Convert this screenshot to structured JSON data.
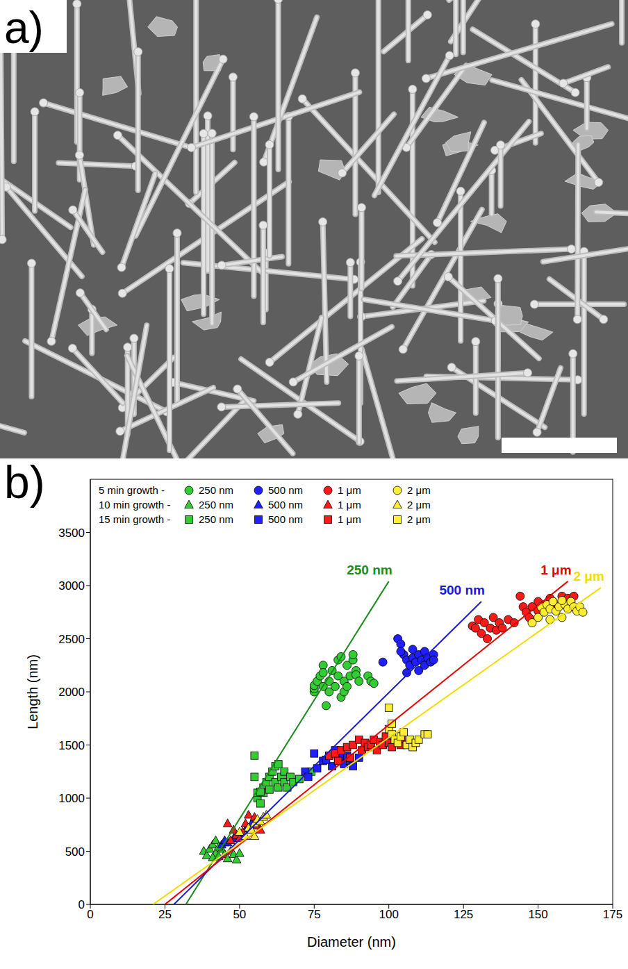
{
  "image_panel": {
    "label": "a)"
  },
  "chart_data": {
    "type": "scatter",
    "panel_label": "b)",
    "x_label": "Diameter (nm)",
    "y_label": "Length (nm)",
    "xlim": [
      0,
      175
    ],
    "xticks": [
      0,
      25,
      50,
      75,
      100,
      125,
      150,
      175
    ],
    "ylim": [
      0,
      4000
    ],
    "yticks": [
      0,
      500,
      1000,
      1500,
      2000,
      2500,
      3000,
      3500
    ],
    "legend": "top-left",
    "series": [
      {
        "name": "250 nm",
        "group": "5 min growth -",
        "color": "#33cc33",
        "marker": "circle",
        "x": [
          75,
          75,
          75,
          76,
          77,
          78,
          78,
          79,
          80,
          80,
          81,
          82,
          83,
          83,
          84,
          84,
          85,
          85,
          86,
          86,
          87,
          88,
          88,
          89,
          89,
          90,
          93,
          94,
          95,
          78
        ],
        "y": [
          2000,
          2030,
          2060,
          2100,
          2150,
          2050,
          2250,
          1870,
          2000,
          2100,
          2200,
          2050,
          2150,
          2300,
          1950,
          2330,
          2000,
          2100,
          2050,
          2250,
          2150,
          2300,
          2350,
          2200,
          2160,
          2100,
          2150,
          2100,
          2080,
          2180
        ]
      },
      {
        "name": "500 nm",
        "group": "5 min growth -",
        "color": "#1f1fff",
        "marker": "circle",
        "x": [
          98,
          103,
          104,
          105,
          106,
          106,
          107,
          108,
          108,
          109,
          110,
          110,
          111,
          112,
          112,
          113,
          114,
          115,
          115,
          104
        ],
        "y": [
          2280,
          2500,
          2450,
          2350,
          2300,
          2180,
          2250,
          2400,
          2320,
          2280,
          2350,
          2200,
          2300,
          2250,
          2380,
          2320,
          2280,
          2350,
          2300,
          2380
        ]
      },
      {
        "name": "1 μm",
        "group": "5 min growth -",
        "color": "#ff1a1a",
        "marker": "circle",
        "x": [
          128,
          129,
          130,
          131,
          132,
          133,
          134,
          135,
          136,
          137,
          138,
          140,
          142,
          144,
          145,
          146,
          148,
          150,
          152,
          154,
          155,
          156,
          158,
          160,
          161,
          162,
          147,
          150
        ],
        "y": [
          2620,
          2600,
          2680,
          2550,
          2650,
          2500,
          2600,
          2700,
          2580,
          2650,
          2600,
          2680,
          2650,
          2900,
          2800,
          2750,
          2800,
          2850,
          2820,
          2880,
          2850,
          2800,
          2900,
          2880,
          2850,
          2900,
          2700,
          2760
        ]
      },
      {
        "name": "2 μm",
        "group": "5 min growth -",
        "color": "#ffee33",
        "marker": "circle",
        "x": [
          148,
          150,
          151,
          152,
          153,
          154,
          155,
          156,
          157,
          158,
          159,
          160,
          161,
          162,
          163,
          164,
          165,
          154,
          158
        ],
        "y": [
          2650,
          2700,
          2800,
          2750,
          2820,
          2780,
          2850,
          2760,
          2800,
          2700,
          2820,
          2780,
          2850,
          2800,
          2760,
          2800,
          2750,
          2680,
          2860
        ]
      },
      {
        "name": "250 nm",
        "group": "10 min growth -",
        "color": "#33cc33",
        "marker": "triangle",
        "x": [
          38,
          39,
          40,
          41,
          42,
          42,
          43,
          44,
          45,
          45,
          46,
          47,
          48,
          49,
          50,
          41,
          43
        ],
        "y": [
          500,
          460,
          520,
          560,
          600,
          480,
          450,
          520,
          580,
          470,
          430,
          500,
          470,
          420,
          480,
          440,
          540
        ]
      },
      {
        "name": "500 nm",
        "group": "10 min growth -",
        "color": "#1f1fff",
        "marker": "triangle",
        "x": [
          44,
          45,
          46,
          48,
          50,
          52,
          54,
          55
        ],
        "y": [
          560,
          600,
          580,
          620,
          650,
          700,
          760,
          740
        ]
      },
      {
        "name": "1 μm",
        "group": "10 min growth -",
        "color": "#ff1a1a",
        "marker": "triangle",
        "x": [
          46,
          48,
          49,
          50,
          51,
          52,
          53,
          55,
          56,
          57,
          47
        ],
        "y": [
          760,
          700,
          650,
          620,
          680,
          760,
          840,
          820,
          740,
          700,
          600
        ]
      },
      {
        "name": "2 μm",
        "group": "10 min growth -",
        "color": "#ffee33",
        "marker": "triangle",
        "x": [
          50,
          52,
          53,
          54,
          55,
          56,
          57,
          58,
          59,
          55
        ],
        "y": [
          680,
          640,
          720,
          700,
          760,
          800,
          780,
          820,
          840,
          640
        ]
      },
      {
        "name": "250 nm",
        "group": "15 min growth -",
        "color": "#33cc33",
        "marker": "square",
        "x": [
          55,
          55,
          56,
          56,
          57,
          58,
          58,
          59,
          60,
          60,
          61,
          62,
          62,
          63,
          64,
          65,
          65,
          66,
          67,
          68,
          70,
          57,
          63,
          74
        ],
        "y": [
          1400,
          1200,
          1000,
          1050,
          950,
          1100,
          1050,
          1150,
          1200,
          1080,
          1250,
          1150,
          1300,
          1100,
          1200,
          1250,
          1150,
          1100,
          1200,
          1150,
          1180,
          1060,
          1320,
          1250
        ]
      },
      {
        "name": "500 nm",
        "group": "15 min growth -",
        "color": "#1f1fff",
        "marker": "square",
        "x": [
          72,
          73,
          75,
          76,
          78,
          80,
          81,
          82,
          83,
          84,
          85,
          86,
          87,
          88,
          90,
          79
        ],
        "y": [
          1250,
          1200,
          1420,
          1280,
          1350,
          1400,
          1300,
          1450,
          1350,
          1380,
          1320,
          1400,
          1350,
          1300,
          1380,
          1360
        ]
      },
      {
        "name": "1 μm",
        "group": "15 min growth -",
        "color": "#ff1a1a",
        "marker": "square",
        "x": [
          80,
          82,
          84,
          86,
          88,
          90,
          91,
          92,
          93,
          94,
          95,
          96,
          97,
          98,
          99,
          100,
          101,
          102,
          104,
          105,
          87,
          83
        ],
        "y": [
          1400,
          1420,
          1450,
          1480,
          1500,
          1550,
          1450,
          1520,
          1480,
          1500,
          1550,
          1450,
          1530,
          1500,
          1580,
          1520,
          1480,
          1550,
          1500,
          1560,
          1380,
          1350
        ]
      },
      {
        "name": "2 μm",
        "group": "15 min growth -",
        "color": "#ffee33",
        "marker": "square",
        "x": [
          100,
          100,
          101,
          102,
          103,
          104,
          105,
          106,
          107,
          108,
          109,
          110,
          112,
          113,
          101
        ],
        "y": [
          1850,
          1650,
          1600,
          1550,
          1520,
          1580,
          1620,
          1500,
          1550,
          1480,
          1520,
          1550,
          1600,
          1600,
          1700
        ]
      }
    ],
    "fit_lines": [
      {
        "name": "250 nm",
        "color": "#1a8c1a",
        "x": [
          32,
          100
        ],
        "y": [
          0,
          3040
        ]
      },
      {
        "name": "500 nm",
        "color": "#1a1ad9",
        "x": [
          28,
          131
        ],
        "y": [
          0,
          2850
        ]
      },
      {
        "name": "1 μm",
        "color": "#e60000",
        "x": [
          25,
          160
        ],
        "y": [
          0,
          3040
        ]
      },
      {
        "name": "2 μm",
        "color": "#f2dc00",
        "x": [
          21,
          171
        ],
        "y": [
          0,
          2980
        ]
      }
    ]
  }
}
